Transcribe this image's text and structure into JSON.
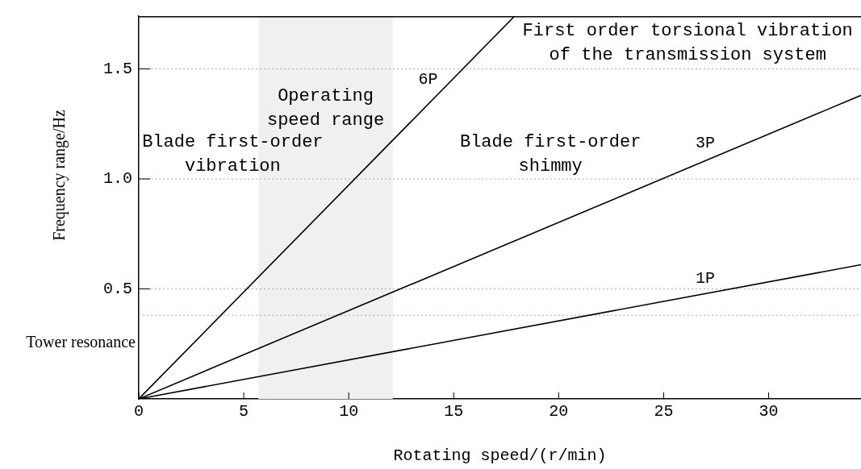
{
  "chart_data": {
    "type": "line",
    "xlabel": "Rotating speed/(r/min)",
    "ylabel": "Frequency range/Hz",
    "xlim": [
      0,
      34.4
    ],
    "ylim": [
      0,
      1.74
    ],
    "xticks": [
      0,
      5,
      10,
      15,
      20,
      25,
      30
    ],
    "yticks": [
      {
        "value": 0.5,
        "label": "0.5"
      },
      {
        "value": 1,
        "label": "1.0"
      },
      {
        "value": 1.5,
        "label": "1.5"
      }
    ],
    "series": [
      {
        "name": "1P",
        "color": "#000000",
        "x": [
          0,
          34.4
        ],
        "values": [
          0,
          0.61
        ]
      },
      {
        "name": "3P",
        "color": "#000000",
        "x": [
          0,
          34.4
        ],
        "values": [
          0,
          1.38
        ]
      },
      {
        "name": "6P",
        "color": "#000000",
        "x": [
          0,
          17.9
        ],
        "values": [
          0,
          1.74
        ]
      }
    ],
    "bands": [
      {
        "axis": "x",
        "from": 5.7,
        "to": 12.1,
        "label": "Operating speed range",
        "color": "#f0f0f0"
      }
    ],
    "ref_lines": [
      {
        "axis": "y",
        "value": 0.38,
        "label": "Tower resonance",
        "color": "#aaaaaa",
        "line_style": "dotted"
      },
      {
        "axis": "y",
        "value": 0.5,
        "color": "#aaaaaa",
        "line_style": "dotted"
      },
      {
        "axis": "y",
        "value": 1,
        "color": "#aaaaaa",
        "line_style": "dotted"
      },
      {
        "axis": "y",
        "value": 1.5,
        "color": "#aaaaaa",
        "line_style": "dotted"
      }
    ],
    "annotations": [
      "Blade first-order\nvibration",
      "Blade first-order\nshimmy",
      "First order torsional vibration\nof the transmission system"
    ],
    "marker": "none",
    "line_style": "solid",
    "grid": false,
    "legend": false
  }
}
